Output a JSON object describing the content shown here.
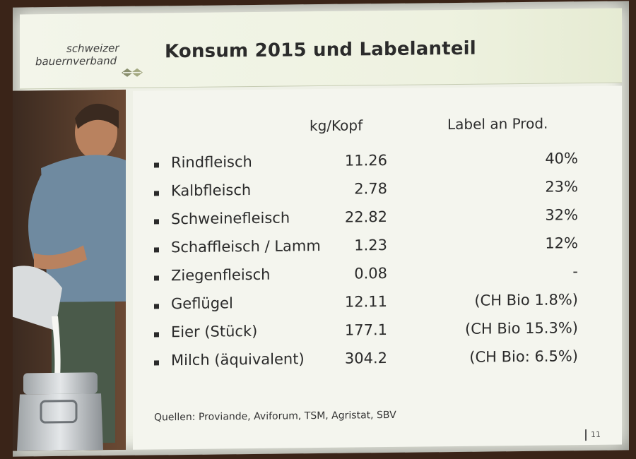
{
  "logo": {
    "line1": "schweizer",
    "line2": "bauernverband"
  },
  "title": "Konsum 2015 und Labelanteil",
  "table": {
    "col_kg": "kg/Kopf",
    "col_label": "Label an Prod.",
    "rows": [
      {
        "name": "Rindfleisch",
        "kg": "11.26",
        "label": "40%"
      },
      {
        "name": "Kalbfleisch",
        "kg": "2.78",
        "label": "23%"
      },
      {
        "name": "Schweinefleisch",
        "kg": "22.82",
        "label": "32%"
      },
      {
        "name": "Schaffleisch / Lamm",
        "kg": "1.23",
        "label": "12%"
      },
      {
        "name": "Ziegenfleisch",
        "kg": "0.08",
        "label": "-"
      },
      {
        "name": "Geflügel",
        "kg": "12.11",
        "label": "(CH Bio 1.8%)"
      },
      {
        "name": "Eier (Stück)",
        "kg": "177.1",
        "label": "(CH Bio 15.3%)"
      },
      {
        "name": "Milch (äquivalent)",
        "kg": "304.2",
        "label": "(CH Bio: 6.5%)"
      }
    ]
  },
  "sources": "Quellen: Proviande, Aviforum, TSM, Agristat, SBV",
  "page_number": "11"
}
